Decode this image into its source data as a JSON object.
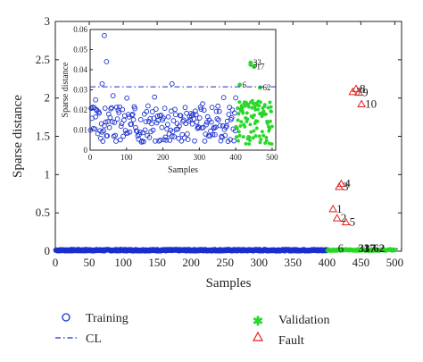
{
  "chart_data": {
    "type": "scatter",
    "main": {
      "xlabel": "Samples",
      "ylabel": "Sparse distance",
      "xlim": [
        0,
        510
      ],
      "ylim": [
        0,
        3
      ],
      "xticks": [
        0,
        50,
        100,
        150,
        200,
        250,
        300,
        350,
        400,
        450,
        500
      ],
      "yticks": [
        0,
        0.5,
        1,
        1.5,
        2,
        2.5,
        3
      ],
      "control_limit": 0.0315,
      "training": {
        "x_range": [
          1,
          400
        ],
        "y_typical": 0.012
      },
      "validation": {
        "x_range": [
          401,
          500
        ],
        "y_typical": 0.015
      },
      "fault": [
        {
          "label": "1",
          "x": 409,
          "y": 0.55
        },
        {
          "label": "2",
          "x": 415,
          "y": 0.43
        },
        {
          "label": "3",
          "x": 418,
          "y": 0.84
        },
        {
          "label": "4",
          "x": 421,
          "y": 0.88
        },
        {
          "label": "5",
          "x": 428,
          "y": 0.38
        },
        {
          "label": "6",
          "x": 411,
          "y": 0.0
        },
        {
          "label": "7",
          "x": 438,
          "y": 2.08
        },
        {
          "label": "8",
          "x": 443,
          "y": 2.12
        },
        {
          "label": "9",
          "x": 447,
          "y": 2.07
        },
        {
          "label": "10",
          "x": 451,
          "y": 1.92
        },
        {
          "label": "33",
          "x": 441,
          "y": 0.0
        },
        {
          "label": "17",
          "x": 449,
          "y": 0.0
        },
        {
          "label": "62",
          "x": 463,
          "y": 0.0
        }
      ]
    },
    "inset": {
      "xlabel": "Samples",
      "ylabel": "Sparse distance",
      "xlim": [
        0,
        510
      ],
      "ylim": [
        0,
        0.06
      ],
      "xticks": [
        0,
        100,
        200,
        300,
        400,
        500
      ],
      "yticks": [
        0,
        0.01,
        0.02,
        0.03,
        0.04,
        0.05,
        0.06
      ],
      "control_limit": 0.0315,
      "annotations": [
        {
          "label": "33",
          "x": 441,
          "y": 0.0435
        },
        {
          "label": "3",
          "x": 441,
          "y": 0.0425
        },
        {
          "label": "17",
          "x": 450,
          "y": 0.0415
        },
        {
          "label": "6",
          "x": 411,
          "y": 0.0325
        },
        {
          "label": "62",
          "x": 467,
          "y": 0.0311
        }
      ]
    },
    "legend": {
      "training": "Training",
      "cl": "CL",
      "validation": "Validation",
      "fault": "Fault"
    }
  }
}
